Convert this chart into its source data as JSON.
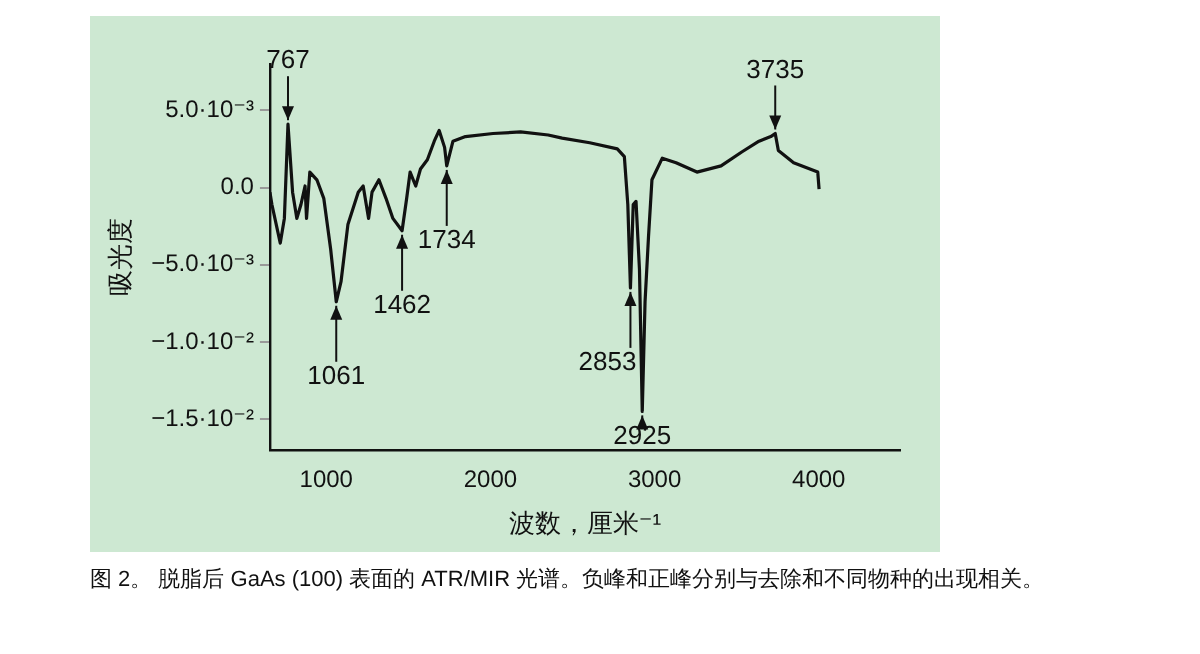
{
  "chart_data": {
    "type": "line",
    "xlabel": "波数，厘米⁻¹",
    "ylabel": "吸光度",
    "x": [
      657,
      669,
      720,
      745,
      767,
      795,
      821,
      846,
      871,
      880,
      900,
      943,
      985,
      1027,
      1061,
      1090,
      1132,
      1195,
      1225,
      1258,
      1279,
      1321,
      1364,
      1406,
      1462,
      1490,
      1511,
      1545,
      1574,
      1616,
      1658,
      1688,
      1721,
      1734,
      1772,
      1848,
      2016,
      2184,
      2352,
      2437,
      2605,
      2773,
      2816,
      2837,
      2853,
      2870,
      2887,
      2908,
      2925,
      2942,
      2963,
      2984,
      3047,
      3131,
      3258,
      3405,
      3531,
      3636,
      3708,
      3735,
      3754,
      3847,
      3994,
      4002
    ],
    "series": [
      {
        "color": "#111111",
        "values": [
          -0.0003,
          -0.0011,
          -0.0036,
          -0.002,
          0.0041,
          -0.0003,
          -0.002,
          -0.0011,
          0.0001,
          -0.002,
          0.001,
          0.0005,
          -0.0007,
          -0.004,
          -0.0074,
          -0.0061,
          -0.0024,
          -0.0003,
          0.0001,
          -0.002,
          -0.0003,
          0.0005,
          -0.0007,
          -0.002,
          -0.0028,
          -0.0007,
          0.001,
          0.0001,
          0.0012,
          0.0018,
          0.003,
          0.0037,
          0.0026,
          0.0014,
          0.003,
          0.0033,
          0.0035,
          0.0036,
          0.0034,
          0.0032,
          0.0029,
          0.0025,
          0.002,
          -0.0011,
          -0.0065,
          -0.0011,
          -0.0009,
          -0.0053,
          -0.0145,
          -0.0074,
          -0.0032,
          0.0005,
          0.0019,
          0.0016,
          0.001,
          0.0014,
          0.0023,
          0.003,
          0.0033,
          0.0035,
          0.0024,
          0.0016,
          0.001,
          -0.0001
        ]
      }
    ],
    "xlim": [
      657,
      4495
    ],
    "ylim": [
      -0.017,
      0.008
    ],
    "xticks": [
      1000,
      2000,
      3000,
      4000
    ],
    "yticks": [
      {
        "value": 0.005,
        "label": "5.0·10⁻³"
      },
      {
        "value": 0,
        "label": "0.0"
      },
      {
        "value": -0.005,
        "label": "−5.0·10⁻³"
      },
      {
        "value": -0.01,
        "label": "−1.0·10⁻²"
      },
      {
        "value": -0.015,
        "label": "−1.5·10⁻²"
      }
    ],
    "grid": false,
    "legend": false,
    "marker": "none",
    "line_style": "solid",
    "annotations": [
      {
        "text": "767",
        "x": 767,
        "y": 0.0041
      },
      {
        "text": "1061",
        "x": 1061,
        "y": -0.0074
      },
      {
        "text": "1462",
        "x": 1462,
        "y": -0.0028
      },
      {
        "text": "1734",
        "x": 1734,
        "y": 0.0014
      },
      {
        "text": "2853",
        "x": 2853,
        "y": -0.0065
      },
      {
        "text": "2925",
        "x": 2925,
        "y": -0.0145
      },
      {
        "text": "3735",
        "x": 3735,
        "y": 0.0035
      },
      "图 2。 脱脂后 GaAs (100) 表面的 ATR/MIR 光谱。负峰和正峰分别与去除和不同物种的出现相关。"
    ]
  }
}
